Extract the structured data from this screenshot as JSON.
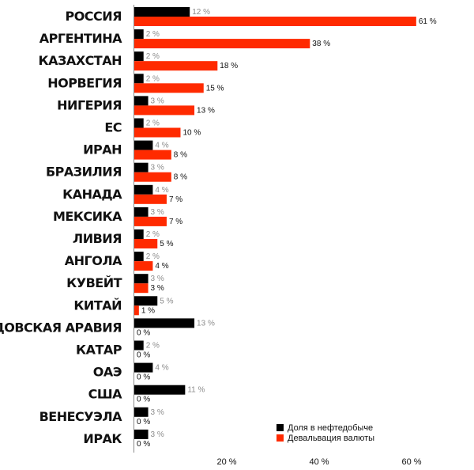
{
  "chart_data": {
    "type": "bar",
    "orientation": "horizontal",
    "title": "",
    "xlabel": "",
    "ylabel": "",
    "xlim": [
      0,
      70
    ],
    "grid": false,
    "legend_position": "bottom-right",
    "x_ticks": [
      {
        "value": 20,
        "label": "20 %"
      },
      {
        "value": 40,
        "label": "40 %"
      },
      {
        "value": 60,
        "label": "60 %"
      }
    ],
    "categories": [
      "РОССИЯ",
      "АРГЕНТИНА",
      "КАЗАХСТАН",
      "НОРВЕГИЯ",
      "НИГЕРИЯ",
      "ЕС",
      "ИРАН",
      "БРАЗИЛИЯ",
      "КАНАДА",
      "МЕКСИКА",
      "ЛИВИЯ",
      "АНГОЛА",
      "КУВЕЙТ",
      "КИТАЙ",
      "САУДОВСКАЯ АРАВИЯ",
      "КАТАР",
      "ОАЭ",
      "США",
      "ВЕНЕСУЭЛА",
      "ИРАК"
    ],
    "series": [
      {
        "name": "Доля в нефтедобыче",
        "color": "#000000",
        "values": [
          12,
          2,
          2,
          2,
          3,
          2,
          4,
          3,
          4,
          3,
          2,
          2,
          3,
          5,
          13,
          2,
          4,
          11,
          3,
          3
        ],
        "labels": [
          "12 %",
          "2 %",
          "2 %",
          "2 %",
          "3 %",
          "2 %",
          "4 %",
          "3 %",
          "4 %",
          "3 %",
          "2 %",
          "2 %",
          "3 %",
          "5 %",
          "13 %",
          "2 %",
          "4 %",
          "11 %",
          "3 %",
          "3 %"
        ]
      },
      {
        "name": "Девальвация валюты",
        "color": "#ff2a00",
        "values": [
          61,
          38,
          18,
          15,
          13,
          10,
          8,
          8,
          7,
          7,
          5,
          4,
          3,
          1,
          0,
          0,
          0,
          0,
          0,
          0
        ],
        "labels": [
          "61 %",
          "38 %",
          "18 %",
          "15 %",
          "13 %",
          "10 %",
          "8 %",
          "8 %",
          "7 %",
          "7 %",
          "5 %",
          "4 %",
          "3 %",
          "1 %",
          "0 %",
          "0 %",
          "0 %",
          "0 %",
          "0 %",
          "0 %"
        ]
      }
    ]
  }
}
